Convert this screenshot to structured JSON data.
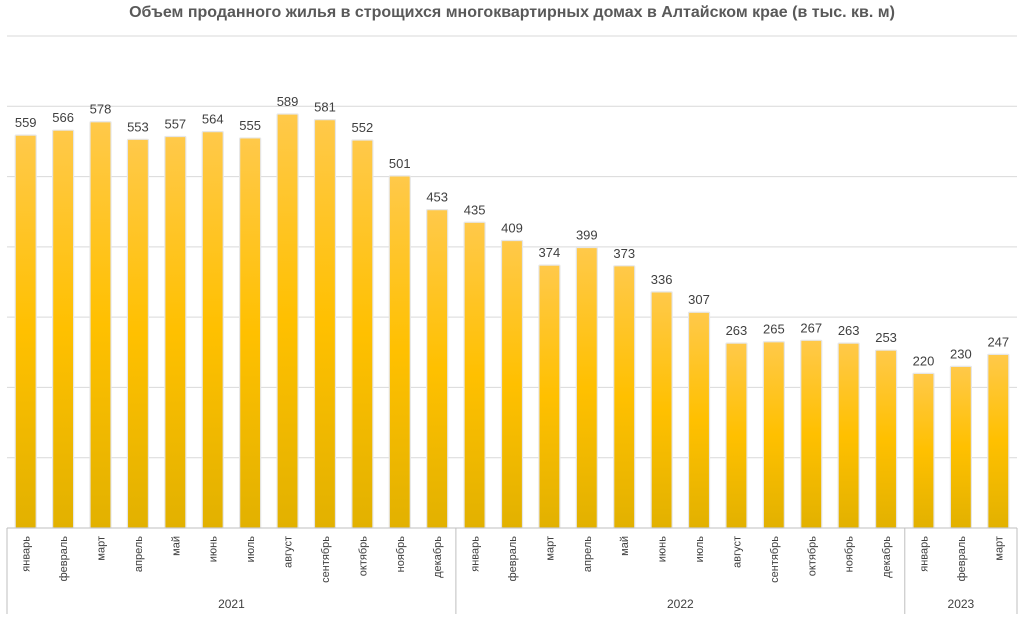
{
  "title": "Объем проданного жилья в строщихся многоквартирных домах в Алтайском крае (в тыс. кв. м)",
  "colors": {
    "bar_top": "#FFC94A",
    "bar_mid": "#FFC000",
    "bar_bottom": "#E2B100",
    "grid": "#D9D9D9",
    "axis": "#BFBFBF",
    "text": "#404040"
  },
  "chart_data": {
    "type": "bar",
    "title": "Объем проданного жилья в строщихся многоквартирных домах в Алтайском крае (в тыс. кв. м)",
    "categories": [
      "январь",
      "февраль",
      "март",
      "апрель",
      "май",
      "июнь",
      "июль",
      "август",
      "сентябрь",
      "октябрь",
      "ноябрь",
      "декабрь",
      "январь",
      "февраль",
      "март",
      "апрель",
      "май",
      "июнь",
      "июль",
      "август",
      "сентябрь",
      "октябрь",
      "ноябрь",
      "декабрь",
      "январь",
      "февраль",
      "март"
    ],
    "values": [
      559,
      566,
      578,
      553,
      557,
      564,
      555,
      589,
      581,
      552,
      501,
      453,
      435,
      409,
      374,
      399,
      373,
      336,
      307,
      263,
      265,
      267,
      263,
      253,
      220,
      230,
      247
    ],
    "groups": [
      {
        "label": "2021",
        "count": 12
      },
      {
        "label": "2022",
        "count": 12
      },
      {
        "label": "2023",
        "count": 3
      }
    ],
    "ylim": [
      0,
      700
    ],
    "grid": true,
    "data_labels": true
  }
}
